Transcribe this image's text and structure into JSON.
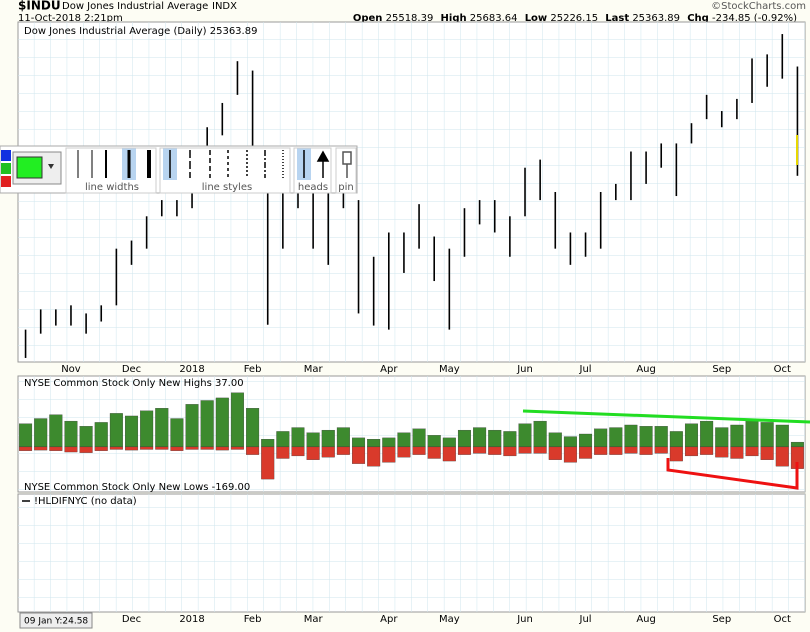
{
  "header": {
    "symbol": "$INDU",
    "name": "Dow Jones Industrial Average",
    "exchange": "INDX",
    "copyright": "©StockCharts.com",
    "date": "11-Oct-2018 2:21pm",
    "open_label": "Open",
    "open": "25518.39",
    "high_label": "High",
    "high": "25683.64",
    "low_label": "Low",
    "low": "25226.15",
    "last_label": "Last",
    "last": "25363.89",
    "chg_label": "Chg",
    "chg": "-234.85 (-0.92%)"
  },
  "toolbar": {
    "widths": "line widths",
    "styles": "line styles",
    "heads": "heads",
    "pin": "pin"
  },
  "status": "09 Jan Y:24.58",
  "chart_data": [
    {
      "type": "range",
      "title": "Dow Jones Industrial Average (Daily) 25363.89",
      "color": "#000000",
      "categories": [
        null,
        null,
        null,
        "Nov",
        null,
        null,
        null,
        "Dec",
        null,
        null,
        null,
        "2018",
        null,
        null,
        null,
        "Feb",
        null,
        null,
        null,
        "Mar",
        null,
        null,
        null,
        null,
        "Apr",
        null,
        null,
        null,
        "May",
        null,
        null,
        null,
        null,
        "Jun",
        null,
        null,
        null,
        "Jul",
        null,
        null,
        null,
        "Aug",
        null,
        null,
        null,
        null,
        "Sep",
        null,
        null,
        null,
        "Oct",
        null
      ],
      "high": [
        23300,
        23550,
        23550,
        23600,
        23500,
        23600,
        24300,
        24400,
        24700,
        24900,
        24900,
        25300,
        25800,
        26100,
        26616,
        26500,
        25500,
        25300,
        25100,
        25450,
        25000,
        25400,
        24900,
        24200,
        24500,
        24500,
        24850,
        24450,
        24300,
        24800,
        24900,
        24900,
        24700,
        25300,
        25400,
        25000,
        24500,
        24500,
        25000,
        25100,
        25500,
        25500,
        25600,
        25600,
        25850,
        26200,
        26000,
        26150,
        26650,
        26700,
        26951,
        26550
      ],
      "low": [
        22950,
        23250,
        23350,
        23350,
        23250,
        23400,
        23600,
        24100,
        24300,
        24700,
        24700,
        24800,
        25300,
        25700,
        26200,
        25400,
        23360,
        24300,
        24800,
        24300,
        24100,
        24800,
        23500,
        23350,
        23300,
        24000,
        24300,
        23900,
        23300,
        24200,
        24600,
        24500,
        24200,
        24700,
        24900,
        24300,
        24100,
        24200,
        24300,
        24900,
        24900,
        25100,
        25300,
        24950,
        25600,
        25900,
        25800,
        25900,
        26100,
        26300,
        26400,
        25200
      ],
      "ylim": [
        22900,
        27100
      ]
    },
    {
      "type": "bar",
      "ylim": [
        -350,
        550
      ],
      "series": [
        {
          "name": "NYSE Common Stock Only New Highs 37.00",
          "color": "#3d8a2e",
          "values": [
            180,
            220,
            250,
            200,
            160,
            190,
            260,
            240,
            280,
            300,
            220,
            330,
            360,
            380,
            420,
            300,
            60,
            120,
            150,
            110,
            130,
            150,
            70,
            60,
            70,
            110,
            140,
            90,
            70,
            130,
            150,
            130,
            120,
            180,
            200,
            110,
            80,
            100,
            140,
            150,
            170,
            160,
            160,
            120,
            180,
            200,
            150,
            170,
            210,
            190,
            170,
            37
          ]
        },
        {
          "name": "NYSE Common Stock Only New Lows -169.00",
          "color": "#d93a2b",
          "values": [
            -30,
            -25,
            -30,
            -40,
            -45,
            -30,
            -20,
            -25,
            -20,
            -20,
            -30,
            -20,
            -20,
            -25,
            -20,
            -60,
            -250,
            -90,
            -70,
            -100,
            -80,
            -60,
            -130,
            -150,
            -120,
            -80,
            -60,
            -90,
            -110,
            -60,
            -50,
            -60,
            -70,
            -50,
            -50,
            -100,
            -120,
            -90,
            -60,
            -60,
            -50,
            -60,
            -50,
            -110,
            -70,
            -60,
            -80,
            -90,
            -70,
            -100,
            -150,
            -169
          ]
        }
      ]
    },
    {
      "type": "line",
      "title": "!HLDIFNYC (no data)",
      "categories": [
        null,
        null,
        null,
        null,
        null,
        null,
        null,
        "Dec",
        null,
        null,
        null,
        "2018",
        null,
        null,
        null,
        "Feb",
        null,
        null,
        null,
        "Mar",
        null,
        null,
        null,
        null,
        "Apr",
        null,
        null,
        null,
        "May",
        null,
        null,
        null,
        null,
        "Jun",
        null,
        null,
        null,
        "Jul",
        null,
        null,
        null,
        "Aug",
        null,
        null,
        null,
        null,
        "Sep",
        null,
        null,
        null,
        "Oct",
        null
      ]
    }
  ]
}
